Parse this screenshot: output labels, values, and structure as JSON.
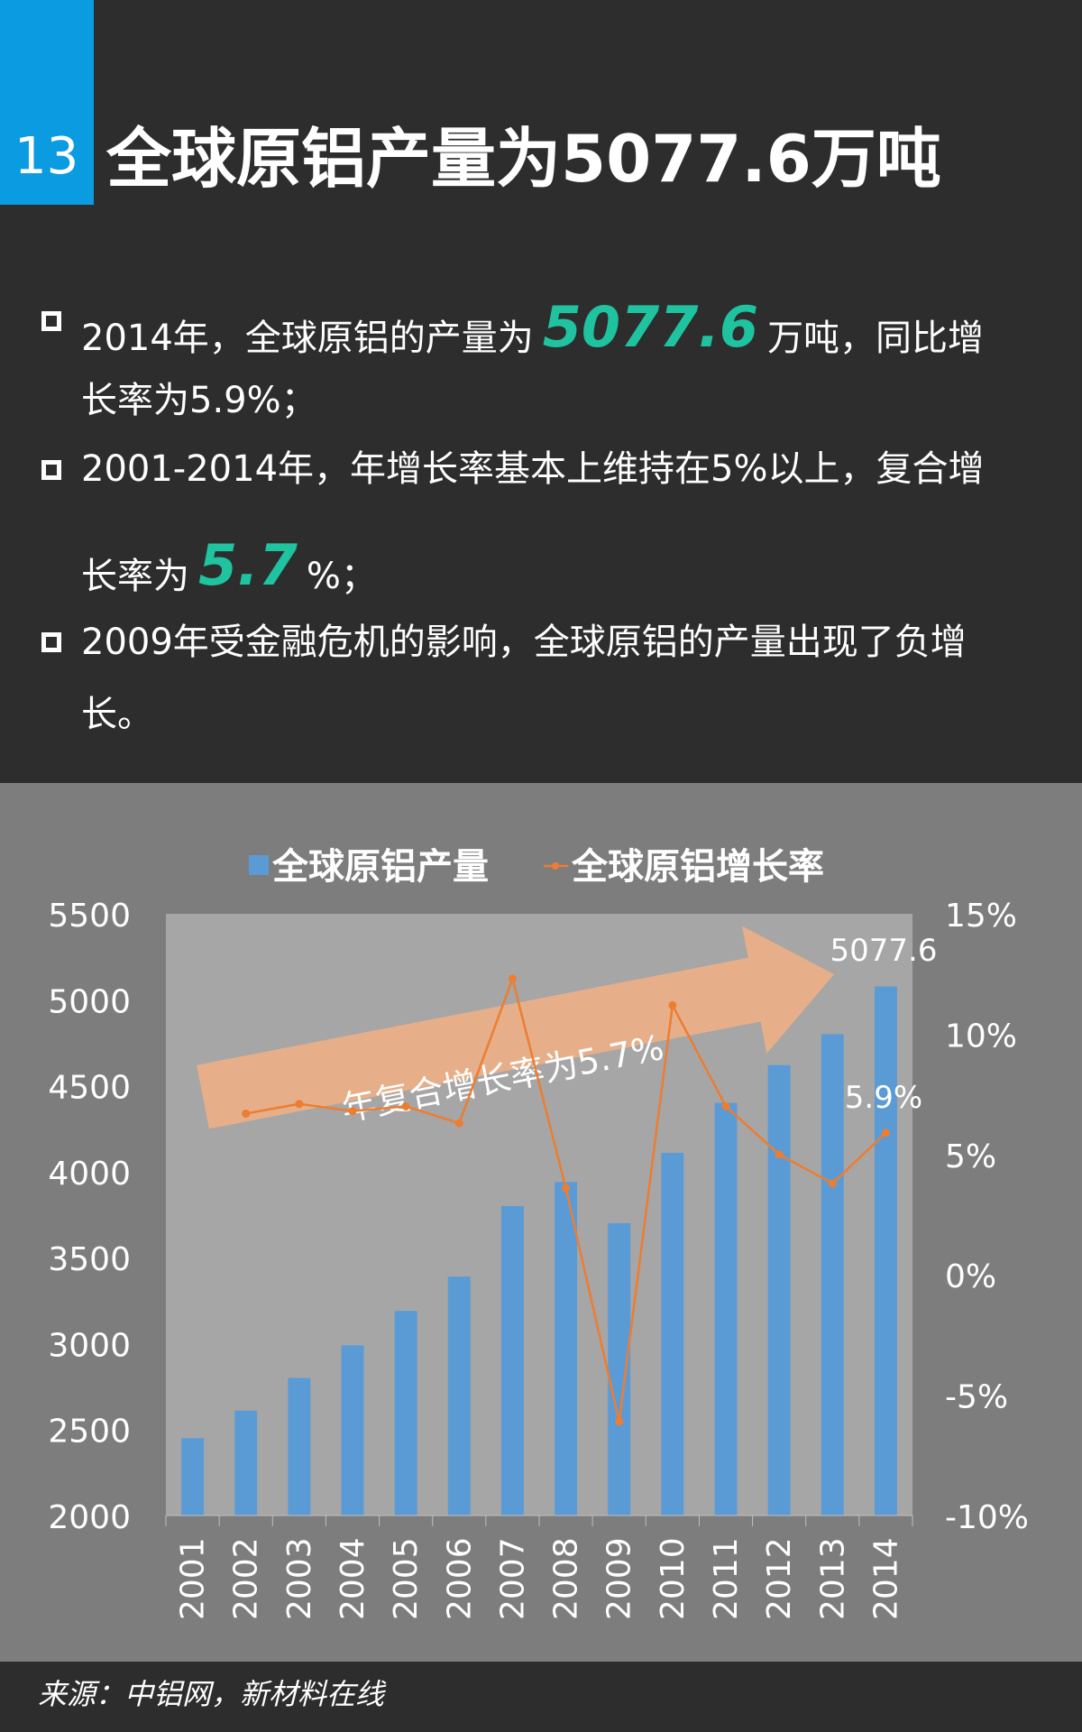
{
  "slide": {
    "number": "13",
    "title": "全球原铝产量为5077.6万吨"
  },
  "bullets": [
    {
      "line1_pre": "2014年，全球原铝的产量为",
      "highlight": "5077.6",
      "line1_post": "万吨，同比增",
      "line2": "长率为5.9%；"
    },
    {
      "line1": "2001-2014年，年增长率基本上维持在5%以上，复合增",
      "line2_pre": "长率为",
      "highlight": "5.7",
      "line2_post": "%；"
    },
    {
      "line1": "2009年受金融危机的影响，全球原铝的产量出现了负增",
      "line2": "长。"
    }
  ],
  "colors": {
    "bar": "#5b9bd5",
    "line": "#ed7d31",
    "highlight": "#1fc3a0",
    "accent": "#0a9be0",
    "arrow": "#f4b183"
  },
  "chart_data": {
    "type": "bar",
    "categories": [
      "2001",
      "2002",
      "2003",
      "2004",
      "2005",
      "2006",
      "2007",
      "2008",
      "2009",
      "2010",
      "2011",
      "2012",
      "2013",
      "2014"
    ],
    "series": [
      {
        "name": "全球原铝产量",
        "type": "bar",
        "axis": "left",
        "values": [
          2450,
          2610,
          2800,
          2990,
          3190,
          3390,
          3800,
          3940,
          3700,
          4110,
          4400,
          4620,
          4800,
          5077.6
        ]
      },
      {
        "name": "全球原铝增长率",
        "type": "line",
        "axis": "right",
        "values": [
          null,
          6.7,
          7.1,
          6.8,
          7.0,
          6.3,
          12.3,
          3.6,
          -6.1,
          11.2,
          7.0,
          5.0,
          3.8,
          5.9
        ]
      }
    ],
    "yleft": {
      "min": 2000,
      "max": 5500,
      "ticks": [
        2000,
        2500,
        3000,
        3500,
        4000,
        4500,
        5000,
        5500
      ]
    },
    "yright": {
      "min": -10,
      "max": 15,
      "ticks": [
        "-10%",
        "-5%",
        "0%",
        "5%",
        "10%",
        "15%"
      ]
    },
    "data_labels": {
      "last_bar": "5077.6",
      "last_point": "5.9%"
    },
    "annotation": "年复合增长率为5.7%",
    "legend_position": "top"
  },
  "source": "来源：中铝网，新材料在线"
}
